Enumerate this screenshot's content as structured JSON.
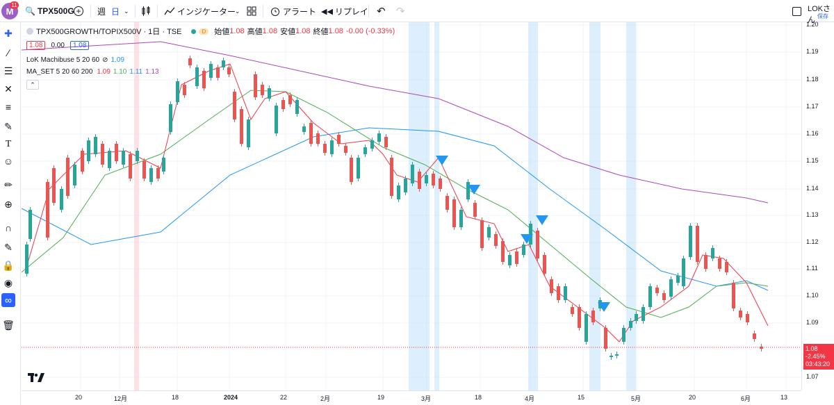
{
  "topbar": {
    "logo_letter": "M",
    "logo_badge": "11",
    "symbol": "TPX500G",
    "interval_week": "週",
    "interval_day": "日",
    "indicators_label": "インジケーター",
    "alert_label": "アラート",
    "replay_label": "リプレイ",
    "user_label": "LOKさん",
    "saved_label": "保存"
  },
  "legend": {
    "title": "TPX500GROWTH/TOPIX500V · 1日 · TSE",
    "badge": "D",
    "open_label": "始値",
    "open": "1.08",
    "high_label": "高値",
    "high": "1.08",
    "low_label": "安値",
    "low": "1.08",
    "close_label": "終値",
    "close": "1.08",
    "change": "-0.00 (-0.33%)",
    "bid": "1.08",
    "spread": "0.00",
    "ask": "1.08",
    "ind1_name": "LoK Machibuse 5 20 60",
    "ind1_value": "1.09",
    "ind2_name": "MA_SET 5 20 60 200",
    "ind2_v1": "1.09",
    "ind2_v2": "1.10",
    "ind2_v3": "1.11",
    "ind2_v4": "1.13"
  },
  "price_axis": {
    "ticks": [
      "1.20",
      "1.19",
      "1.18",
      "1.17",
      "1.16",
      "1.15",
      "1.14",
      "1.13",
      "1.12",
      "1.11",
      "1.10",
      "1.09",
      "1.07"
    ],
    "current_price": "1.08",
    "current_change": "-2.45%",
    "countdown": "03:43:20"
  },
  "time_axis": {
    "ticks": [
      "20",
      "12月",
      "18",
      "2024",
      "22",
      "2月",
      "19",
      "3月",
      "18",
      "4月",
      "15",
      "5月",
      "20",
      "6月",
      "13"
    ]
  },
  "colors": {
    "up": "#26a69a",
    "down": "#ef5350",
    "ma5": "#f23645",
    "ma20": "#4caf50",
    "ma60": "#2196f3",
    "ma200": "#ab47bc",
    "highlight": "#bbdefb",
    "highlight_red": "#ffcdd2",
    "signal": "#2196f3"
  }
}
